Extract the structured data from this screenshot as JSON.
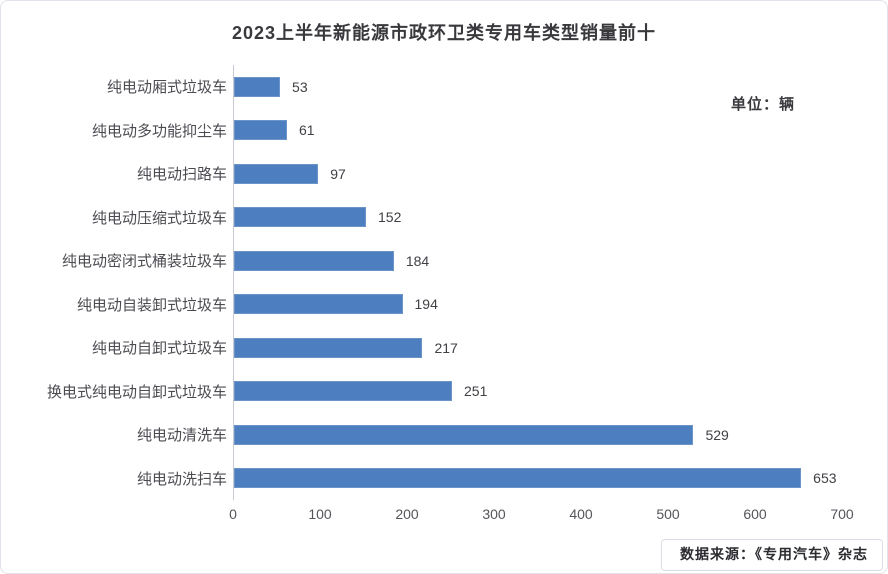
{
  "page": {
    "title": "2023上半年新能源市政环卫类专用车类型销量前十",
    "unit_label": "单位：辆",
    "source": "数据来源：《专用汽车》杂志"
  },
  "colors": {
    "bar": "#4d7ebf",
    "axis_line": "#c9cad1",
    "title_text": "#39393d",
    "label_text": "#4b4b52",
    "card_border": "#e2e2ea"
  },
  "chart_data": {
    "type": "bar",
    "orientation": "horizontal",
    "title": "2023上半年新能源市政环卫类专用车类型销量前十",
    "unit": "辆",
    "categories": [
      "纯电动厢式垃圾车",
      "纯电动多功能抑尘车",
      "纯电动扫路车",
      "纯电动压缩式垃圾车",
      "纯电动密闭式桶装垃圾车",
      "纯电动自装卸式垃圾车",
      "纯电动自卸式垃圾车",
      "换电式纯电动自卸式垃圾车",
      "纯电动清洗车",
      "纯电动洗扫车"
    ],
    "values": [
      53,
      61,
      97,
      152,
      184,
      194,
      217,
      251,
      529,
      653
    ],
    "data_labels": true,
    "xlim": [
      0,
      700
    ],
    "xticks": [
      0,
      100,
      200,
      300,
      400,
      500,
      600,
      700
    ],
    "grid": false,
    "legend": false
  }
}
